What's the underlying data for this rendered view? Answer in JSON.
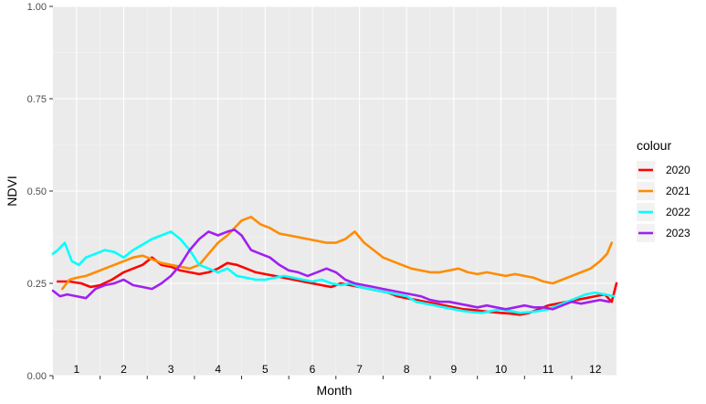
{
  "chart_data": {
    "type": "line",
    "xlabel": "Month",
    "ylabel": "NDVI",
    "ylim": [
      0,
      1
    ],
    "xlim": [
      0.5,
      12.45
    ],
    "y_ticks": [
      "0.00",
      "0.25",
      "0.50",
      "0.75",
      "1.00"
    ],
    "y_tick_values": [
      0,
      0.25,
      0.5,
      0.75,
      1
    ],
    "x_ticks": [
      "1",
      "2",
      "3",
      "4",
      "5",
      "6",
      "7",
      "8",
      "9",
      "10",
      "11",
      "12"
    ],
    "x_tick_values": [
      1,
      2,
      3,
      4,
      5,
      6,
      7,
      8,
      9,
      10,
      11,
      12
    ],
    "grid": true,
    "legend": {
      "title": "colour",
      "position": "right"
    },
    "series": [
      {
        "name": "2020",
        "color": "#ff0000",
        "x": [
          0.6,
          0.85,
          1.1,
          1.3,
          1.5,
          1.75,
          2.0,
          2.2,
          2.4,
          2.6,
          2.8,
          3.0,
          3.2,
          3.4,
          3.6,
          3.8,
          4.0,
          4.2,
          4.4,
          4.6,
          4.8,
          5.0,
          5.2,
          5.4,
          5.6,
          5.8,
          6.0,
          6.2,
          6.4,
          6.6,
          6.8,
          7.0,
          7.2,
          7.4,
          7.6,
          7.8,
          8.0,
          8.2,
          8.4,
          8.6,
          8.8,
          9.0,
          9.2,
          9.4,
          9.6,
          9.8,
          10.0,
          10.2,
          10.4,
          10.6,
          10.8,
          11.0,
          11.2,
          11.4,
          11.6,
          11.8,
          12.0,
          12.2,
          12.35,
          12.45
        ],
        "y": [
          0.255,
          0.255,
          0.25,
          0.24,
          0.245,
          0.26,
          0.28,
          0.29,
          0.3,
          0.32,
          0.3,
          0.295,
          0.285,
          0.28,
          0.275,
          0.28,
          0.29,
          0.305,
          0.3,
          0.29,
          0.28,
          0.275,
          0.27,
          0.265,
          0.26,
          0.255,
          0.25,
          0.245,
          0.24,
          0.25,
          0.245,
          0.24,
          0.235,
          0.23,
          0.225,
          0.215,
          0.21,
          0.205,
          0.2,
          0.195,
          0.19,
          0.185,
          0.18,
          0.178,
          0.175,
          0.172,
          0.17,
          0.168,
          0.165,
          0.17,
          0.18,
          0.19,
          0.195,
          0.2,
          0.205,
          0.21,
          0.215,
          0.22,
          0.2,
          0.25
        ]
      },
      {
        "name": "2021",
        "color": "#ff8c00",
        "x": [
          0.7,
          0.85,
          1.0,
          1.2,
          1.4,
          1.6,
          1.8,
          2.0,
          2.2,
          2.4,
          2.6,
          2.8,
          3.0,
          3.2,
          3.4,
          3.6,
          3.8,
          4.0,
          4.2,
          4.35,
          4.5,
          4.7,
          4.9,
          5.1,
          5.3,
          5.5,
          5.7,
          5.9,
          6.1,
          6.3,
          6.5,
          6.7,
          6.9,
          7.1,
          7.3,
          7.5,
          7.7,
          7.9,
          8.1,
          8.3,
          8.5,
          8.7,
          8.9,
          9.1,
          9.3,
          9.5,
          9.7,
          9.9,
          10.1,
          10.3,
          10.5,
          10.7,
          10.9,
          11.1,
          11.3,
          11.5,
          11.7,
          11.9,
          12.1,
          12.25,
          12.35
        ],
        "y": [
          0.235,
          0.26,
          0.265,
          0.27,
          0.28,
          0.29,
          0.3,
          0.31,
          0.32,
          0.325,
          0.315,
          0.305,
          0.3,
          0.295,
          0.29,
          0.3,
          0.33,
          0.36,
          0.38,
          0.4,
          0.42,
          0.43,
          0.41,
          0.4,
          0.385,
          0.38,
          0.375,
          0.37,
          0.365,
          0.36,
          0.36,
          0.37,
          0.39,
          0.36,
          0.34,
          0.32,
          0.31,
          0.3,
          0.29,
          0.285,
          0.28,
          0.28,
          0.285,
          0.29,
          0.28,
          0.275,
          0.28,
          0.275,
          0.27,
          0.275,
          0.27,
          0.265,
          0.255,
          0.25,
          0.26,
          0.27,
          0.28,
          0.29,
          0.31,
          0.33,
          0.36
        ]
      },
      {
        "name": "2022",
        "color": "#00ffff",
        "x": [
          0.5,
          0.6,
          0.75,
          0.9,
          1.05,
          1.2,
          1.4,
          1.6,
          1.8,
          2.0,
          2.2,
          2.4,
          2.6,
          2.8,
          3.0,
          3.2,
          3.4,
          3.6,
          3.8,
          4.0,
          4.2,
          4.4,
          4.6,
          4.8,
          5.0,
          5.2,
          5.4,
          5.6,
          5.8,
          6.0,
          6.2,
          6.4,
          6.6,
          6.8,
          7.0,
          7.2,
          7.4,
          7.6,
          7.8,
          8.0,
          8.2,
          8.4,
          8.6,
          8.8,
          9.0,
          9.2,
          9.4,
          9.6,
          9.8,
          10.0,
          10.2,
          10.4,
          10.6,
          10.8,
          11.0,
          11.2,
          11.4,
          11.6,
          11.8,
          12.0,
          12.2,
          12.4
        ],
        "y": [
          0.33,
          0.34,
          0.36,
          0.31,
          0.3,
          0.32,
          0.33,
          0.34,
          0.335,
          0.32,
          0.34,
          0.355,
          0.37,
          0.38,
          0.39,
          0.37,
          0.34,
          0.3,
          0.29,
          0.28,
          0.29,
          0.27,
          0.265,
          0.26,
          0.26,
          0.265,
          0.27,
          0.265,
          0.26,
          0.255,
          0.26,
          0.25,
          0.245,
          0.25,
          0.24,
          0.235,
          0.23,
          0.225,
          0.22,
          0.215,
          0.2,
          0.195,
          0.19,
          0.185,
          0.18,
          0.175,
          0.172,
          0.17,
          0.175,
          0.18,
          0.175,
          0.17,
          0.172,
          0.175,
          0.18,
          0.19,
          0.2,
          0.21,
          0.22,
          0.225,
          0.22,
          0.215
        ]
      },
      {
        "name": "2023",
        "color": "#a020f0",
        "x": [
          0.5,
          0.65,
          0.8,
          1.0,
          1.2,
          1.4,
          1.6,
          1.8,
          2.0,
          2.2,
          2.4,
          2.6,
          2.8,
          3.0,
          3.2,
          3.4,
          3.6,
          3.8,
          4.0,
          4.2,
          4.35,
          4.5,
          4.7,
          4.9,
          5.1,
          5.3,
          5.5,
          5.7,
          5.9,
          6.1,
          6.3,
          6.5,
          6.7,
          6.9,
          7.1,
          7.3,
          7.5,
          7.7,
          7.9,
          8.1,
          8.3,
          8.5,
          8.7,
          8.9,
          9.1,
          9.3,
          9.5,
          9.7,
          9.9,
          10.1,
          10.3,
          10.5,
          10.7,
          10.9,
          11.1,
          11.3,
          11.5,
          11.7,
          11.9,
          12.1,
          12.3
        ],
        "y": [
          0.23,
          0.215,
          0.22,
          0.215,
          0.21,
          0.235,
          0.245,
          0.25,
          0.26,
          0.245,
          0.24,
          0.235,
          0.25,
          0.27,
          0.3,
          0.34,
          0.37,
          0.39,
          0.38,
          0.39,
          0.395,
          0.38,
          0.34,
          0.33,
          0.32,
          0.3,
          0.285,
          0.28,
          0.27,
          0.28,
          0.29,
          0.28,
          0.26,
          0.25,
          0.245,
          0.24,
          0.235,
          0.23,
          0.225,
          0.22,
          0.215,
          0.205,
          0.2,
          0.2,
          0.195,
          0.19,
          0.185,
          0.19,
          0.185,
          0.18,
          0.185,
          0.19,
          0.185,
          0.185,
          0.18,
          0.19,
          0.2,
          0.195,
          0.2,
          0.205,
          0.2
        ]
      }
    ]
  }
}
